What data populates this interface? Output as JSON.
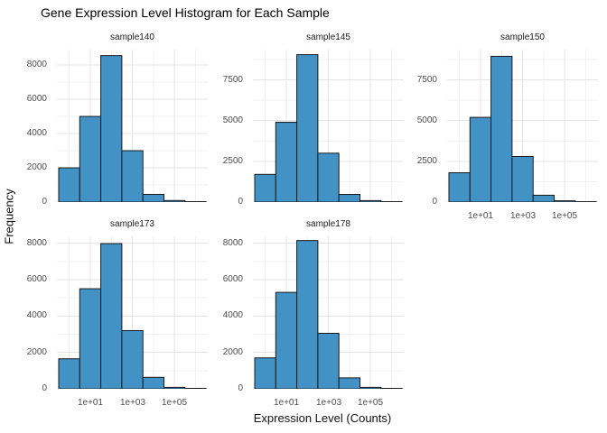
{
  "title": "Gene Expression Level Histogram for Each Sample",
  "axes": {
    "xlabel": "Expression Level (Counts)",
    "ylabel": "Frequency"
  },
  "colors": {
    "background": "#ffffff",
    "bar_fill": "#4292c6",
    "bar_stroke": "#1a1a1a",
    "grid_major": "#e4e4e4",
    "grid_minor": "#f1f1f1",
    "tick_label": "#4d4d4d",
    "strip_label": "#1a1a1a",
    "title_color": "#000000"
  },
  "x_scale": "log10",
  "x_tick_labels": [
    "1e+01",
    "1e+03",
    "1e+05"
  ],
  "x_tick_values": [
    10,
    1000,
    100000
  ],
  "chart_data": [
    {
      "type": "bar",
      "title": "sample140",
      "bins_log10": [
        [
          -0.5,
          0.5
        ],
        [
          0.5,
          1.5
        ],
        [
          1.5,
          2.5
        ],
        [
          2.5,
          3.5
        ],
        [
          3.5,
          4.5
        ],
        [
          4.5,
          5.5
        ],
        [
          5.5,
          6.5
        ]
      ],
      "values": [
        2000,
        5000,
        8550,
        3000,
        450,
        90,
        25
      ],
      "y_ticks": [
        0,
        2000,
        4000,
        6000,
        8000
      ],
      "ylim": [
        0,
        8900
      ],
      "show_x_tick_labels": false,
      "grid_row": 0,
      "grid_col": 0
    },
    {
      "type": "bar",
      "title": "sample145",
      "bins_log10": [
        [
          -0.5,
          0.5
        ],
        [
          0.5,
          1.5
        ],
        [
          1.5,
          2.5
        ],
        [
          2.5,
          3.5
        ],
        [
          3.5,
          4.5
        ],
        [
          4.5,
          5.5
        ],
        [
          5.5,
          6.5
        ]
      ],
      "values": [
        1700,
        4900,
        9050,
        3000,
        470,
        90,
        25
      ],
      "y_ticks": [
        0,
        2500,
        5000,
        7500
      ],
      "ylim": [
        0,
        9360
      ],
      "show_x_tick_labels": false,
      "grid_row": 0,
      "grid_col": 1
    },
    {
      "type": "bar",
      "title": "sample150",
      "bins_log10": [
        [
          -0.5,
          0.5
        ],
        [
          0.5,
          1.5
        ],
        [
          1.5,
          2.5
        ],
        [
          2.5,
          3.5
        ],
        [
          3.5,
          4.5
        ],
        [
          4.5,
          5.5
        ],
        [
          5.5,
          6.5
        ]
      ],
      "values": [
        1800,
        5200,
        8950,
        2800,
        420,
        80,
        25
      ],
      "y_ticks": [
        0,
        2500,
        5000,
        7500
      ],
      "ylim": [
        0,
        9360
      ],
      "show_x_tick_labels": true,
      "grid_row": 0,
      "grid_col": 2
    },
    {
      "type": "bar",
      "title": "sample173",
      "bins_log10": [
        [
          -0.5,
          0.5
        ],
        [
          0.5,
          1.5
        ],
        [
          1.5,
          2.5
        ],
        [
          2.5,
          3.5
        ],
        [
          3.5,
          4.5
        ],
        [
          4.5,
          5.5
        ],
        [
          5.5,
          6.5
        ]
      ],
      "values": [
        1650,
        5500,
        7980,
        3200,
        630,
        80,
        25
      ],
      "y_ticks": [
        0,
        2000,
        4000,
        6000,
        8000
      ],
      "ylim": [
        0,
        8380
      ],
      "show_x_tick_labels": true,
      "grid_row": 1,
      "grid_col": 0
    },
    {
      "type": "bar",
      "title": "sample178",
      "bins_log10": [
        [
          -0.5,
          0.5
        ],
        [
          0.5,
          1.5
        ],
        [
          1.5,
          2.5
        ],
        [
          2.5,
          3.5
        ],
        [
          3.5,
          4.5
        ],
        [
          4.5,
          5.5
        ],
        [
          5.5,
          6.5
        ]
      ],
      "values": [
        1700,
        5300,
        8150,
        3050,
        600,
        80,
        25
      ],
      "y_ticks": [
        0,
        2000,
        4000,
        6000,
        8000
      ],
      "ylim": [
        0,
        8380
      ],
      "show_x_tick_labels": true,
      "grid_row": 1,
      "grid_col": 1
    }
  ]
}
